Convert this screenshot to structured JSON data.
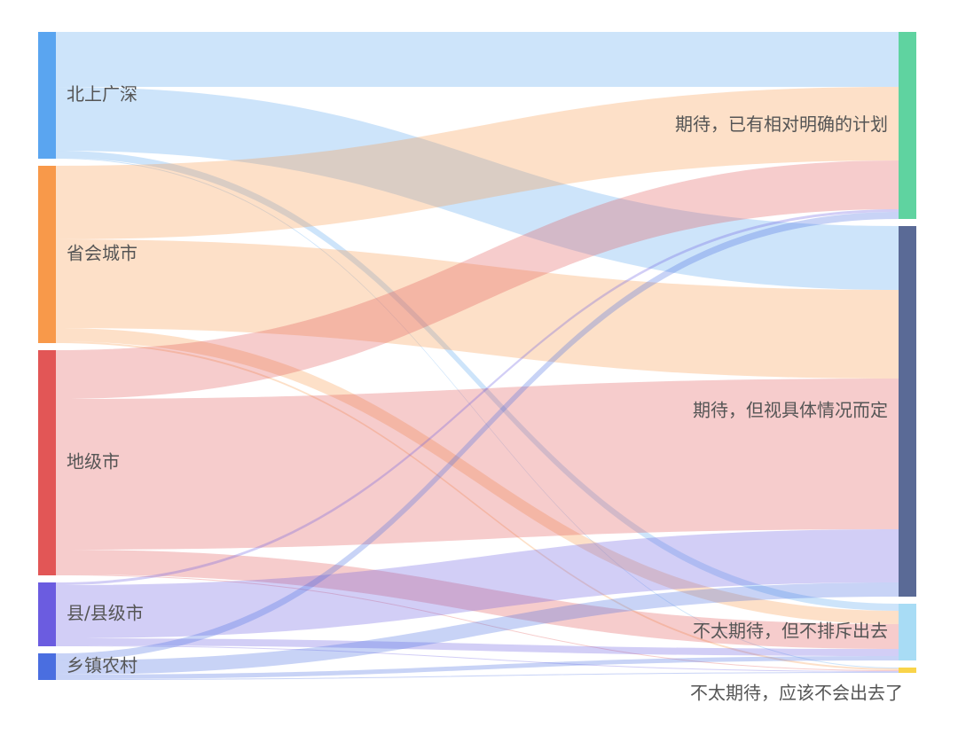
{
  "chart_data": {
    "type": "sankey",
    "nodes": [
      {
        "name": "北上广深",
        "color": "#5aa5f0"
      },
      {
        "name": "省会城市",
        "color": "#f8994a"
      },
      {
        "name": "地级市",
        "color": "#e25656"
      },
      {
        "name": "县/县级市",
        "color": "#6b5ce0"
      },
      {
        "name": "乡镇农村",
        "color": "#4a6ee0"
      },
      {
        "name": "期待，已有相对明确的计划",
        "color": "#5fd3a0"
      },
      {
        "name": "期待，但视具体情况而定",
        "color": "#5a6a96"
      },
      {
        "name": "不太期待，但不排斥出去",
        "color": "#a8dcf5"
      },
      {
        "name": "不太期待，应该不会出去了",
        "color": "#f9d44a"
      }
    ],
    "links": [
      {
        "source": "北上广深",
        "target": "期待，已有相对明确的计划",
        "value": 62
      },
      {
        "source": "北上广深",
        "target": "期待，但视具体情况而定",
        "value": 72
      },
      {
        "source": "北上广深",
        "target": "不太期待，但不排斥出去",
        "value": 8
      },
      {
        "source": "北上广深",
        "target": "不太期待，应该不会出去了",
        "value": 1
      },
      {
        "source": "省会城市",
        "target": "期待，已有相对明确的计划",
        "value": 83
      },
      {
        "source": "省会城市",
        "target": "期待，但视具体情况而定",
        "value": 100
      },
      {
        "source": "省会城市",
        "target": "不太期待，但不排斥出去",
        "value": 15
      },
      {
        "source": "省会城市",
        "target": "不太期待，应该不会出去了",
        "value": 2
      },
      {
        "source": "地级市",
        "target": "期待，已有相对明确的计划",
        "value": 55
      },
      {
        "source": "地级市",
        "target": "期待，但视具体情况而定",
        "value": 170
      },
      {
        "source": "地级市",
        "target": "不太期待，但不排斥出去",
        "value": 28
      },
      {
        "source": "地级市",
        "target": "不太期待，应该不会出去了",
        "value": 1
      },
      {
        "source": "县/县级市",
        "target": "期待，已有相对明确的计划",
        "value": 3
      },
      {
        "source": "县/县级市",
        "target": "期待，但视具体情况而定",
        "value": 60
      },
      {
        "source": "县/县级市",
        "target": "不太期待，但不排斥出去",
        "value": 8
      },
      {
        "source": "县/县级市",
        "target": "不太期待，应该不会出去了",
        "value": 1
      },
      {
        "source": "乡镇农村",
        "target": "期待，已有相对明确的计划",
        "value": 8
      },
      {
        "source": "乡镇农村",
        "target": "期待，但视具体情况而定",
        "value": 16
      },
      {
        "source": "乡镇农村",
        "target": "不太期待，但不排斥出去",
        "value": 5
      },
      {
        "source": "乡镇农村",
        "target": "不太期待，应该不会出去了",
        "value": 1
      }
    ]
  }
}
